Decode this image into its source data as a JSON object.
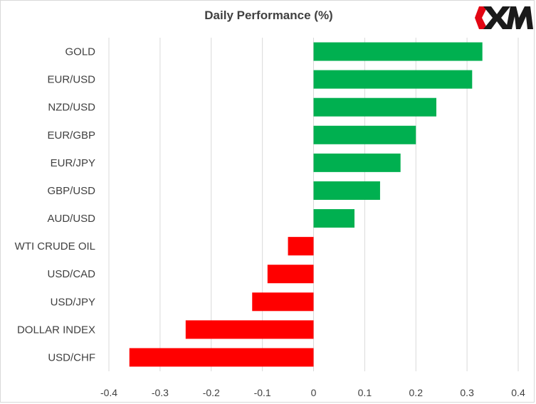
{
  "chart_data": {
    "type": "bar",
    "orientation": "horizontal",
    "title": "Daily Performance  (%)",
    "categories": [
      "GOLD",
      "EUR/USD",
      "NZD/USD",
      "EUR/GBP",
      "EUR/JPY",
      "GBP/USD",
      "AUD/USD",
      "WTI CRUDE OIL",
      "USD/CAD",
      "USD/JPY",
      "DOLLAR INDEX",
      "USD/CHF"
    ],
    "values": [
      0.33,
      0.31,
      0.24,
      0.2,
      0.17,
      0.13,
      0.08,
      -0.05,
      -0.09,
      -0.12,
      -0.25,
      -0.36
    ],
    "xlim": [
      -0.4,
      0.4
    ],
    "xticks": [
      "-0.4",
      "-0.3",
      "-0.2",
      "-0.1",
      "0",
      "0.1",
      "0.2",
      "0.3",
      "0.4"
    ],
    "xlabel": "",
    "ylabel": "",
    "grid": "vertical",
    "legend": "none",
    "colors": {
      "positive": "#00b050",
      "negative": "#ff0000",
      "grid": "#d9d9d9",
      "text": "#404040"
    }
  },
  "logo": {
    "brand": "XM",
    "icon": "xm-logo-icon",
    "accent": "#e30613",
    "text_color": "#1a1a1a"
  }
}
